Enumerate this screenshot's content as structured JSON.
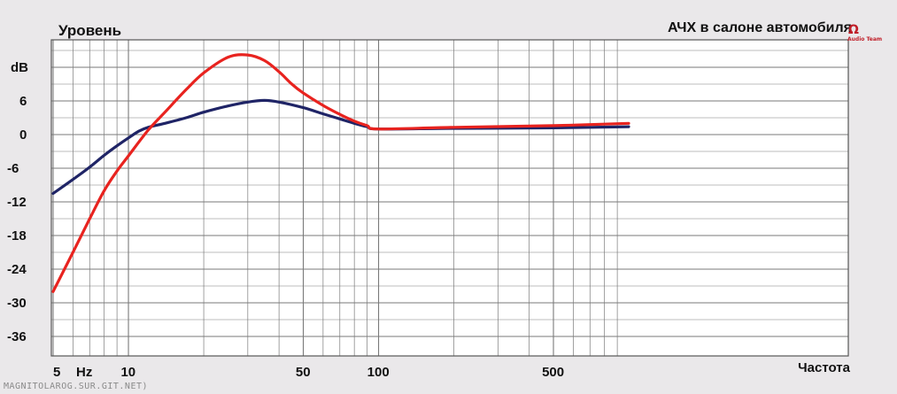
{
  "chart_data": {
    "type": "line",
    "title": "АЧХ в салоне автомобиля",
    "ylabel": "Уровень",
    "y_unit": "dB",
    "xlabel": "Частота",
    "x_unit": "Hz",
    "x_scale": "log",
    "xlim": [
      5,
      1000
    ],
    "ylim": [
      -38,
      18
    ],
    "grid": true,
    "y_ticks": [
      6,
      0,
      -6,
      -12,
      -18,
      -24,
      -30,
      -36
    ],
    "x_ticks": [
      5,
      10,
      50,
      100,
      500
    ],
    "series": [
      {
        "color": "#1f2466",
        "points": [
          [
            5,
            -10.5
          ],
          [
            6,
            -8.0
          ],
          [
            7,
            -5.8
          ],
          [
            8,
            -3.7
          ],
          [
            9,
            -2.0
          ],
          [
            10,
            -0.6
          ],
          [
            11,
            0.6
          ],
          [
            12,
            1.3
          ],
          [
            14,
            2.0
          ],
          [
            17,
            3.0
          ],
          [
            20,
            4.0
          ],
          [
            25,
            5.1
          ],
          [
            30,
            5.8
          ],
          [
            35,
            6.1
          ],
          [
            40,
            5.8
          ],
          [
            50,
            4.8
          ],
          [
            60,
            3.7
          ],
          [
            70,
            2.8
          ],
          [
            80,
            2.0
          ],
          [
            90,
            1.4
          ],
          [
            100,
            1.0
          ],
          [
            200,
            1.1
          ],
          [
            500,
            1.2
          ],
          [
            1000,
            1.4
          ]
        ]
      },
      {
        "color": "#e8231f",
        "points": [
          [
            5,
            -28.0
          ],
          [
            6,
            -21.0
          ],
          [
            7,
            -15.0
          ],
          [
            8,
            -10.0
          ],
          [
            9,
            -6.5
          ],
          [
            10,
            -3.8
          ],
          [
            12,
            0.8
          ],
          [
            14,
            4.0
          ],
          [
            17,
            8.0
          ],
          [
            20,
            11.0
          ],
          [
            25,
            13.8
          ],
          [
            30,
            14.2
          ],
          [
            35,
            13.2
          ],
          [
            40,
            11.2
          ],
          [
            45,
            9.0
          ],
          [
            50,
            7.4
          ],
          [
            60,
            5.2
          ],
          [
            70,
            3.6
          ],
          [
            80,
            2.4
          ],
          [
            90,
            1.6
          ],
          [
            100,
            1.0
          ],
          [
            200,
            1.3
          ],
          [
            500,
            1.6
          ],
          [
            1000,
            2.0
          ]
        ]
      }
    ]
  },
  "watermark": {
    "symbol": "Ω",
    "text": "Audio Team"
  },
  "footer_text": "MAGNITOLAROG.SUR.GIT.NET)"
}
